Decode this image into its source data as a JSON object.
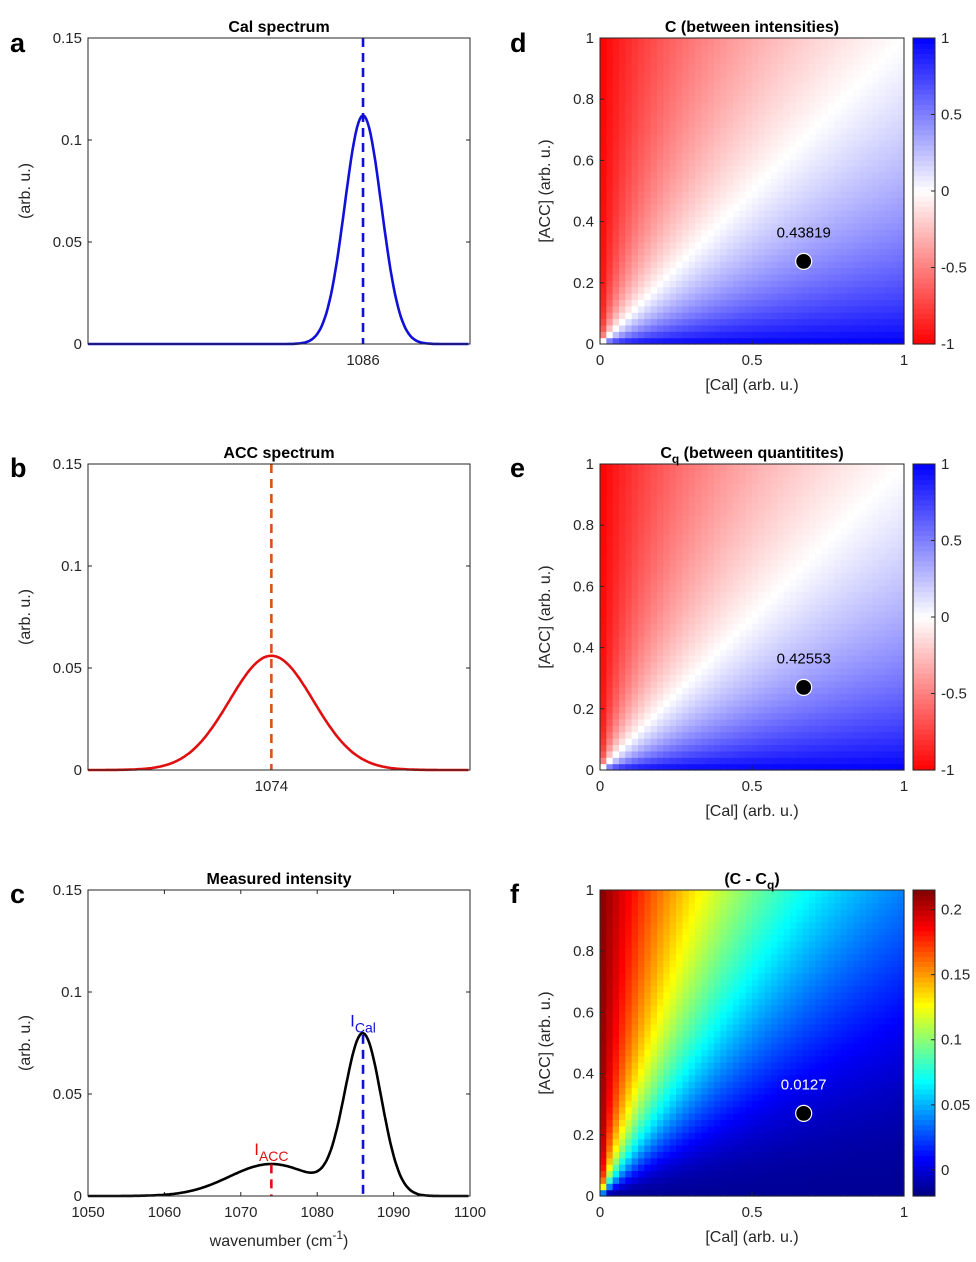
{
  "chart_data": [
    {
      "panel": "a",
      "type": "line",
      "title": "Cal spectrum",
      "ylabel": "(arb. u.)",
      "xlabel": "",
      "xlim": [
        1050,
        1100
      ],
      "ylim": [
        0,
        0.15
      ],
      "yticks": [
        "0",
        "0.05",
        "0.1",
        "0.15"
      ],
      "xticks": [
        "1086"
      ],
      "series": [
        {
          "color": "#1010d8",
          "peak_x": 1086,
          "peak_y": 0.112,
          "sigma": 2.4,
          "x": [
            1050,
            1078,
            1080,
            1082,
            1084,
            1085,
            1086,
            1087,
            1088,
            1090,
            1092,
            1094,
            1100
          ],
          "y": [
            0,
            0.0005,
            0.0048,
            0.027,
            0.079,
            0.103,
            0.112,
            0.103,
            0.079,
            0.027,
            0.0048,
            0.0005,
            0
          ]
        }
      ],
      "vline": {
        "x": 1086,
        "style": "dashed",
        "color": "#1010d8"
      }
    },
    {
      "panel": "b",
      "type": "line",
      "title": "ACC spectrum",
      "ylabel": "(arb. u.)",
      "xlabel": "",
      "xlim": [
        1050,
        1100
      ],
      "ylim": [
        0,
        0.15
      ],
      "yticks": [
        "0",
        "0.05",
        "0.1",
        "0.15"
      ],
      "xticks": [
        "1074"
      ],
      "series": [
        {
          "color": "#e01010",
          "peak_x": 1074,
          "peak_y": 0.056,
          "sigma": 5.5,
          "x": [
            1050,
            1060,
            1064,
            1068,
            1071,
            1074,
            1077,
            1080,
            1084,
            1088,
            1100
          ],
          "y": [
            0,
            0.002,
            0.01,
            0.031,
            0.048,
            0.056,
            0.048,
            0.031,
            0.01,
            0.002,
            0
          ]
        }
      ],
      "vline": {
        "x": 1074,
        "style": "dashed",
        "color": "#d95319"
      }
    },
    {
      "panel": "c",
      "type": "line",
      "title": "Measured intensity",
      "ylabel": "(arb. u.)",
      "xlabel": "wavenumber (cm",
      "xlabel_sup": "-1",
      "xlabel_end": ")",
      "xlim": [
        1050,
        1100
      ],
      "ylim": [
        0,
        0.15
      ],
      "yticks": [
        "0",
        "0.05",
        "0.1",
        "0.15"
      ],
      "xticks": [
        "1050",
        "1060",
        "1070",
        "1080",
        "1090",
        "1100"
      ],
      "series": [
        {
          "color": "#000000",
          "x": [
            1050,
            1060,
            1065,
            1070,
            1074,
            1078,
            1082,
            1084,
            1086,
            1088,
            1090,
            1094,
            1100
          ],
          "y": [
            0,
            0.001,
            0.006,
            0.013,
            0.016,
            0.02,
            0.05,
            0.07,
            0.079,
            0.069,
            0.04,
            0.006,
            0
          ]
        }
      ],
      "vlines": [
        {
          "x": 1074,
          "ymax": 0.0155,
          "color": "#e01010",
          "style": "dashed"
        },
        {
          "x": 1086,
          "ymax": 0.079,
          "color": "#1010d8",
          "style": "dashed"
        }
      ],
      "annotations": [
        {
          "text": "I",
          "sub": "ACC",
          "x": 1074,
          "y": 0.02,
          "color": "#e01010"
        },
        {
          "text": "I",
          "sub": "Cal",
          "x": 1086,
          "y": 0.083,
          "color": "#1010d8"
        }
      ]
    },
    {
      "panel": "d",
      "type": "heatmap",
      "title": "C (between intensities)",
      "xlabel": "[Cal] (arb. u.)",
      "ylabel": "[ACC] (arb. u.)",
      "xlim": [
        0,
        1
      ],
      "ylim": [
        0,
        1
      ],
      "xticks": [
        "0",
        "0.5",
        "1"
      ],
      "yticks": [
        "0",
        "0.2",
        "0.4",
        "0.6",
        "0.8",
        "1"
      ],
      "colormap": "red-white-blue",
      "clim": [
        -1,
        1
      ],
      "colorbar_ticks": [
        "-1",
        "-0.5",
        "0",
        "0.5",
        "1"
      ],
      "marker": {
        "x": 0.67,
        "y": 0.27,
        "label": "0.43819"
      }
    },
    {
      "panel": "e",
      "type": "heatmap",
      "title": "C",
      "title_sub": "q",
      "title_rest": " (between quantitites)",
      "xlabel": "[Cal] (arb. u.)",
      "ylabel": "[ACC] (arb. u.)",
      "xlim": [
        0,
        1
      ],
      "ylim": [
        0,
        1
      ],
      "xticks": [
        "0",
        "0.5",
        "1"
      ],
      "yticks": [
        "0",
        "0.2",
        "0.4",
        "0.6",
        "0.8",
        "1"
      ],
      "colormap": "red-white-blue",
      "clim": [
        -1,
        1
      ],
      "colorbar_ticks": [
        "-1",
        "-0.5",
        "0",
        "0.5",
        "1"
      ],
      "marker": {
        "x": 0.67,
        "y": 0.27,
        "label": "0.42553"
      }
    },
    {
      "panel": "f",
      "type": "heatmap",
      "title": "(C - C",
      "title_sub": "q",
      "title_rest": ")",
      "xlabel": "[Cal] (arb. u.)",
      "ylabel": "[ACC] (arb. u.)",
      "xlim": [
        0,
        1
      ],
      "ylim": [
        0,
        1
      ],
      "xticks": [
        "0",
        "0.5",
        "1"
      ],
      "yticks": [
        "0",
        "0.2",
        "0.4",
        "0.6",
        "0.8",
        "1"
      ],
      "colormap": "jet",
      "clim": [
        -0.02,
        0.215
      ],
      "colorbar_ticks": [
        "0",
        "0.05",
        "0.1",
        "0.15",
        "0.2"
      ],
      "marker": {
        "x": 0.67,
        "y": 0.27,
        "label": "0.0127",
        "label_color": "#ffffff"
      }
    }
  ]
}
